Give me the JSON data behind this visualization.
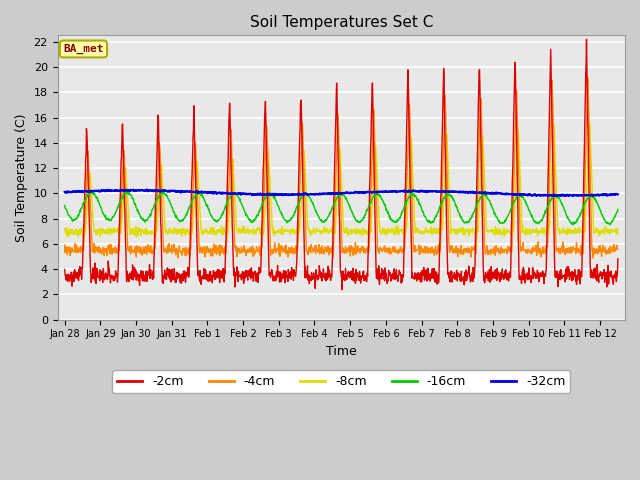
{
  "title": "Soil Temperatures Set C",
  "xlabel": "Time",
  "ylabel": "Soil Temperature (C)",
  "annotation": "BA_met",
  "ylim": [
    0,
    22.5
  ],
  "yticks": [
    0,
    2,
    4,
    6,
    8,
    10,
    12,
    14,
    16,
    18,
    20,
    22
  ],
  "legend_labels": [
    "-2cm",
    "-4cm",
    "-8cm",
    "-16cm",
    "-32cm"
  ],
  "legend_colors": [
    "#dd0000",
    "#ff8800",
    "#dddd00",
    "#00cc00",
    "#0000dd"
  ],
  "line_width": 1.0,
  "x_tick_labels": [
    "Jan 28",
    "Jan 29",
    "Jan 30",
    "Jan 31",
    "Feb 1",
    "Feb 2",
    "Feb 3",
    "Feb 4",
    "Feb 5",
    "Feb 6",
    "Feb 7",
    "Feb 8",
    "Feb 9",
    "Feb 10",
    "Feb 11",
    "Feb 12"
  ],
  "n_points": 1500,
  "end_day": 15.5
}
